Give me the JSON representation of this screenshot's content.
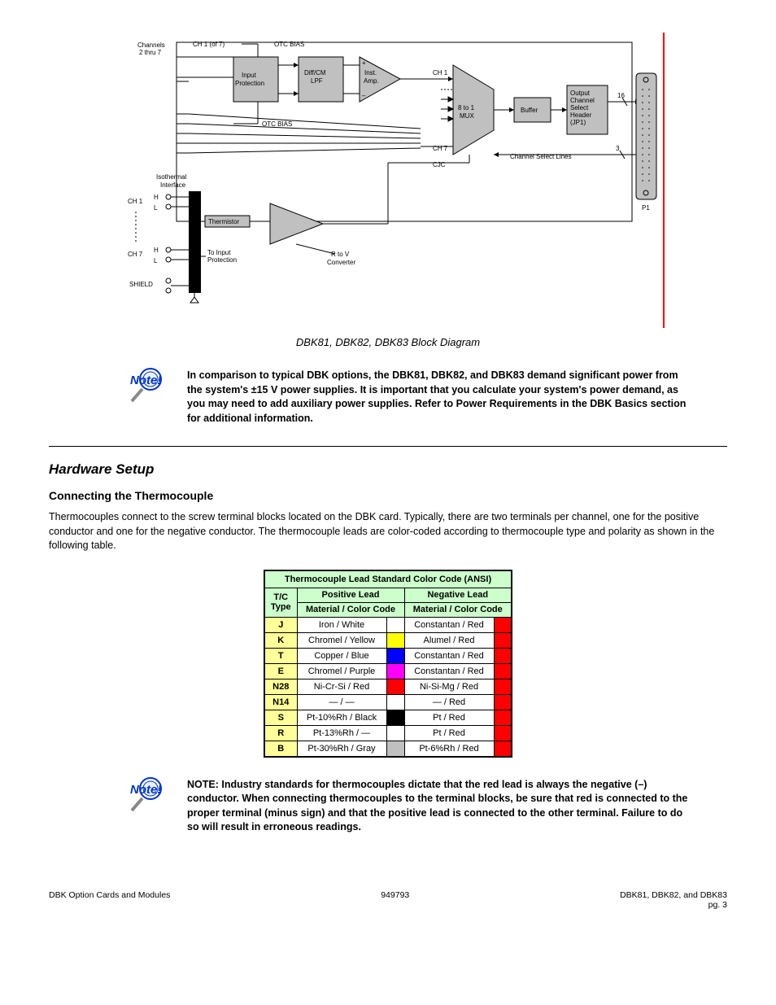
{
  "diagram": {
    "caption": "DBK81, DBK82, DBK83 Block Diagram",
    "labels": {
      "channels": "Channels\n2 thru 7",
      "ch1of7": "CH 1 (of 7)",
      "otc_bias_top": "OTC BIAS",
      "otc_bias_bot": "OTC BIAS",
      "input_prot": "Input\nProtection",
      "diffcm": "Diff/CM\nLPF",
      "inst_amp": "Inst.\nAmp.",
      "ch1": "CH 1",
      "mux": "8 to 1\nMUX",
      "ch7": "CH 7",
      "cjc": "CJC",
      "channel_select": "Channel Select Lines",
      "three": "3",
      "buffer": "Buffer",
      "out_hdr": "Output\nChannel\nSelect\nHeader\n(JP1)",
      "sixteen": "16",
      "p1": "P1",
      "iso_if": "Isothermal\nInterface",
      "ch1_hl": "CH 1",
      "ch7_hl": "CH 7",
      "H": "H",
      "L": "L",
      "thermistor": "Thermistor",
      "to_input": "To Input\nProtection",
      "shield": "SHIELD",
      "rtov": "R to V\nConverter",
      "plus": "+",
      "minus": "–"
    },
    "colors": {
      "block_fill": "#c0c0c0",
      "line": "#000000",
      "edge_red": "#ff0000"
    }
  },
  "notes": {
    "note1": "In comparison to typical DBK options, the DBK81, DBK82, and DBK83 demand significant power from the system's ±15 V power supplies. It is important that you calculate your system's power demand, as you may need to add auxiliary power supplies. Refer to Power Requirements in the DBK Basics section for additional information.",
    "note2_l1": "NOTE:",
    "note2_l2": "Industry standards for thermocouples dictate that the red lead is always",
    "note2_l3": "the negative (–) conductor. When connecting thermocouples to the",
    "note2_l4": "terminal blocks, be sure that red is connected to the proper terminal",
    "note2_l5": "(minus sign) and that the positive lead is connected to the other",
    "note2_l6": "terminal. Failure to do so will result in erroneous readings."
  },
  "section": {
    "title": "Hardware Setup",
    "sub1": "Connecting the Thermocouple",
    "para1": "Thermocouples connect to the screw terminal blocks located on the DBK card. Typically, there are two terminals per channel, one for the positive conductor and one for the negative conductor. The thermocouple leads are color-coded according to thermocouple type and polarity as shown in the following table.",
    "table": {
      "title": "Thermocouple Lead Standard Color Code (ANSI)",
      "headers": {
        "type": "T/C\nType",
        "pos_main": "Positive Lead",
        "pos_sub": "Material / Color Code",
        "neg_main": "Negative Lead",
        "neg_sub": "Material / Color Code"
      },
      "rows": [
        {
          "type": "J",
          "pos": "Iron / White",
          "pos_color": "#ffffff",
          "neg": "Constantan / Red",
          "neg_color": "#ff0000"
        },
        {
          "type": "K",
          "pos": "Chromel / Yellow",
          "pos_color": "#ffff00",
          "neg": "Alumel / Red",
          "neg_color": "#ff0000"
        },
        {
          "type": "T",
          "pos": "Copper / Blue",
          "pos_color": "#0000ff",
          "neg": "Constantan / Red",
          "neg_color": "#ff0000"
        },
        {
          "type": "E",
          "pos": "Chromel / Purple",
          "pos_color": "#ff00ff",
          "neg": "Constantan / Red",
          "neg_color": "#ff0000"
        },
        {
          "type": "N28",
          "pos": "Ni-Cr-Si / Red",
          "pos_color": "#ff0000",
          "neg": "Ni-Si-Mg / Red",
          "neg_color": "#ff0000"
        },
        {
          "type": "N14",
          "pos": "— / —",
          "pos_color": "#ffffff",
          "neg": "— / Red",
          "neg_color": "#ff0000"
        },
        {
          "type": "S",
          "pos": "Pt-10%Rh / Black",
          "pos_color": "#000000",
          "neg": "Pt / Red",
          "neg_color": "#ff0000"
        },
        {
          "type": "R",
          "pos": "Pt-13%Rh / —",
          "pos_color": "#ffffff",
          "neg": "Pt / Red",
          "neg_color": "#ff0000"
        },
        {
          "type": "B",
          "pos": "Pt-30%Rh / Gray",
          "pos_color": "#c0c0c0",
          "neg": "Pt-6%Rh / Red",
          "neg_color": "#ff0000"
        }
      ]
    }
  },
  "footer": {
    "left_l1": "DBK Option Cards and Modules",
    "left_l2": "",
    "center_l1": "949793",
    "center_l2": "",
    "right_l1": "DBK81, DBK82, and DBK83",
    "right_l2": "pg. 3"
  }
}
